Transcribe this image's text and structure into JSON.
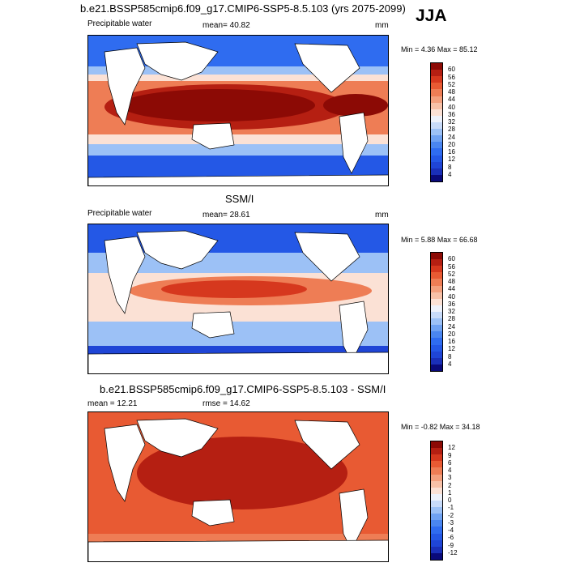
{
  "season": "JJA",
  "panels": [
    {
      "id": "model",
      "title": "b.e21.BSSP585cmip6.f09_g17.CMIP6-SSP5-8.5.103 (yrs 2075-2099)",
      "left_label": "Precipitable water",
      "mean_label": "mean=  40.82",
      "units": "mm",
      "minmax": "Min =   4.36 Max =  85.12",
      "colorbar_labels": [
        "60",
        "56",
        "52",
        "48",
        "44",
        "40",
        "36",
        "32",
        "28",
        "24",
        "20",
        "16",
        "12",
        "8",
        "4"
      ]
    },
    {
      "id": "obs",
      "title": "SSM/I",
      "left_label": "Precipitable water",
      "mean_label": "mean=  28.61",
      "units": "mm",
      "minmax": "Min =   5.88 Max =  66.68",
      "colorbar_labels": [
        "60",
        "56",
        "52",
        "48",
        "44",
        "40",
        "36",
        "32",
        "28",
        "24",
        "20",
        "16",
        "12",
        "8",
        "4"
      ]
    },
    {
      "id": "diff",
      "title": "b.e21.BSSP585cmip6.f09_g17.CMIP6-SSP5-8.5.103 - SSM/I",
      "mean_label": "mean =  12.21",
      "rmse_label": "rmse =  14.62",
      "minmax": "Min =  -0.82 Max =  34.18",
      "colorbar_labels": [
        "12",
        "9",
        "6",
        "4",
        "3",
        "2",
        "1",
        "0",
        "-1",
        "-2",
        "-3",
        "-4",
        "-6",
        "-9",
        "-12"
      ]
    }
  ],
  "colors": {
    "ramp": [
      "#0a0a7a",
      "#1a2fb8",
      "#1f45d6",
      "#2458e6",
      "#2f6cf0",
      "#4a86f0",
      "#6fa2f2",
      "#9cc1f6",
      "#c8dbf9",
      "#eef2fb",
      "#fbe1d5",
      "#f7c1a8",
      "#f3a07e",
      "#ee7d55",
      "#e85a33",
      "#d6381e",
      "#b51f12",
      "#8c0a05"
    ],
    "land": "#ffffff",
    "coast": "#000000"
  }
}
